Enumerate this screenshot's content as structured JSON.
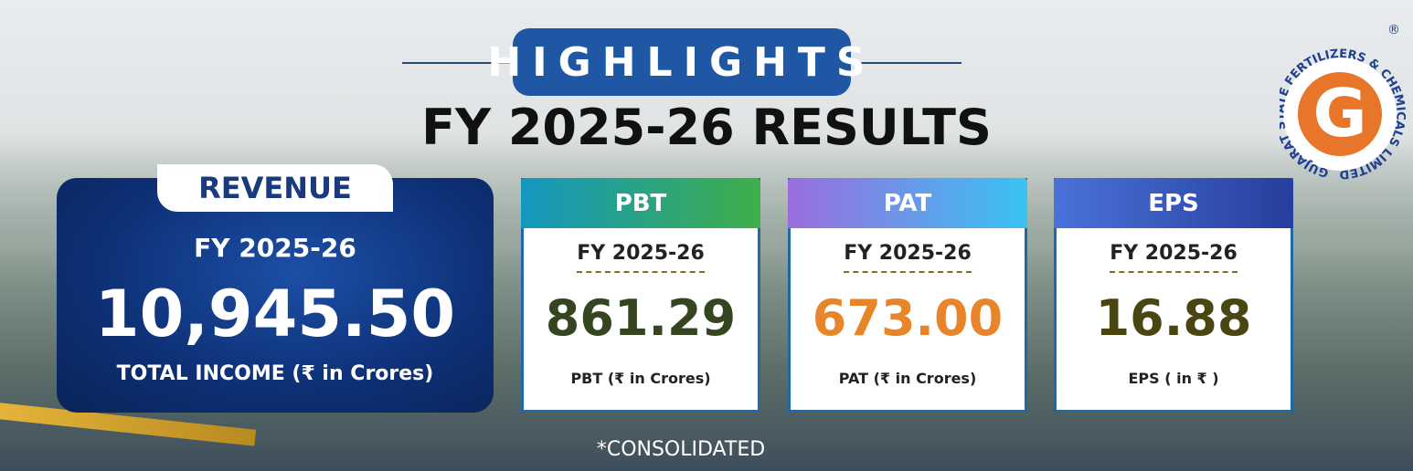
{
  "header": {
    "badge": "HIGHLIGHTS",
    "title": "FY 2025-26 RESULTS"
  },
  "revenue": {
    "label": "REVENUE",
    "period": "FY 2025-26",
    "value": "10,945.50",
    "caption": "TOTAL INCOME (₹ in Crores)"
  },
  "cards": [
    {
      "label": "PBT",
      "period": "FY 2025-26",
      "value": "861.29",
      "caption": "PBT (₹ in Crores)"
    },
    {
      "label": "PAT",
      "period": "FY 2025-26",
      "value": "673.00",
      "caption": "PAT (₹ in Crores)"
    },
    {
      "label": "EPS",
      "period": "FY 2025-26",
      "value": "16.88",
      "caption": "EPS ( in ₹ )"
    }
  ],
  "footer": "*CONSOLIDATED",
  "logo": {
    "letter": "G",
    "ring": "GUJARAT STATE FERTILIZERS & CHEMICALS LIMITED",
    "mark": "®"
  }
}
